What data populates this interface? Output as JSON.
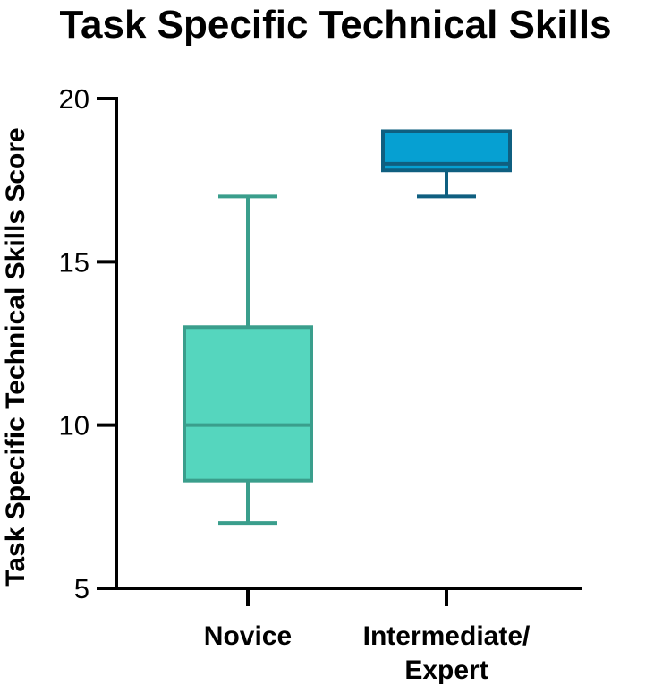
{
  "chart_data": {
    "type": "box",
    "title": "Task Specific Technical Skills",
    "xlabel": "",
    "ylabel": "Task Specific Technical Skills Score",
    "ylim": [
      5,
      20
    ],
    "yticks": [
      "5",
      "10",
      "15",
      "20"
    ],
    "grid": false,
    "legend": "none",
    "categories": [
      {
        "label": [
          "Novice"
        ],
        "min": 7,
        "q1": 8.3,
        "median": 10,
        "q3": 13,
        "max": 17,
        "fill": "#55d6be",
        "stroke": "#3a9e8c"
      },
      {
        "label": [
          "Intermediate/",
          "Expert"
        ],
        "min": 17,
        "q1": 17.8,
        "median": 18,
        "q3": 19,
        "max": 19,
        "fill": "#06a0d2",
        "stroke": "#0f5f80"
      }
    ]
  }
}
